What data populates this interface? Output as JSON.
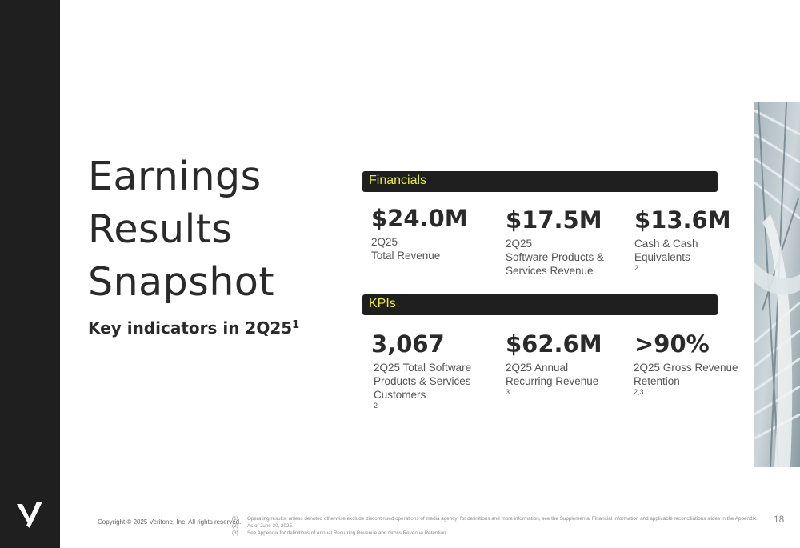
{
  "slide": {
    "title_lines": [
      "Earnings",
      "Results",
      "Snapshot"
    ],
    "subtitle_text": "Key indicators in 2Q25",
    "subtitle_sup": "1"
  },
  "financials": {
    "label": "Financials",
    "items": [
      {
        "value": "$24.0M",
        "desc_lines": [
          "2Q25",
          "Total Revenue"
        ],
        "sup": ""
      },
      {
        "value": "$17.5M",
        "desc_lines": [
          "2Q25",
          "Software Products &",
          "Services Revenue"
        ],
        "sup": ""
      },
      {
        "value": "$13.6M",
        "desc_lines": [
          "Cash & Cash",
          "Equivalents"
        ],
        "sup": "2"
      }
    ]
  },
  "kpis": {
    "label": "KPIs",
    "items": [
      {
        "value": "3,067",
        "desc_lines": [
          "2Q25 Total Software",
          "Products & Services",
          "Customers"
        ],
        "sup": "2"
      },
      {
        "value": "$62.6M",
        "desc_lines": [
          "2Q25 Annual",
          "Recurring Revenue"
        ],
        "sup": "3"
      },
      {
        "value": ">90%",
        "desc_lines": [
          "2Q25 Gross Revenue",
          "Retention"
        ],
        "sup": "2,3"
      }
    ]
  },
  "footer": {
    "copyright": "Copyright © 2025 Veritone, Inc. All rights reserved.",
    "footnotes": [
      {
        "num": "(1)",
        "text": "Operating results, unless denoted otherwise exclude discontinued operations of media agency; for definitions and more information, see the Supplemental Financial Information and applicable reconciliations slides in the Appendix."
      },
      {
        "num": "(2)",
        "text": "As of June 30, 2025."
      },
      {
        "num": "(3)",
        "text": "See Appendix for definitions of Annual Recurring Revenue and Gross Revenue Retention."
      }
    ],
    "page_number": "18"
  },
  "colors": {
    "sidebar": "#1f1f1f",
    "accent": "#e6ee3c",
    "text": "#2a2a2a"
  },
  "icons": {
    "logo": "veritone-v-logo"
  }
}
